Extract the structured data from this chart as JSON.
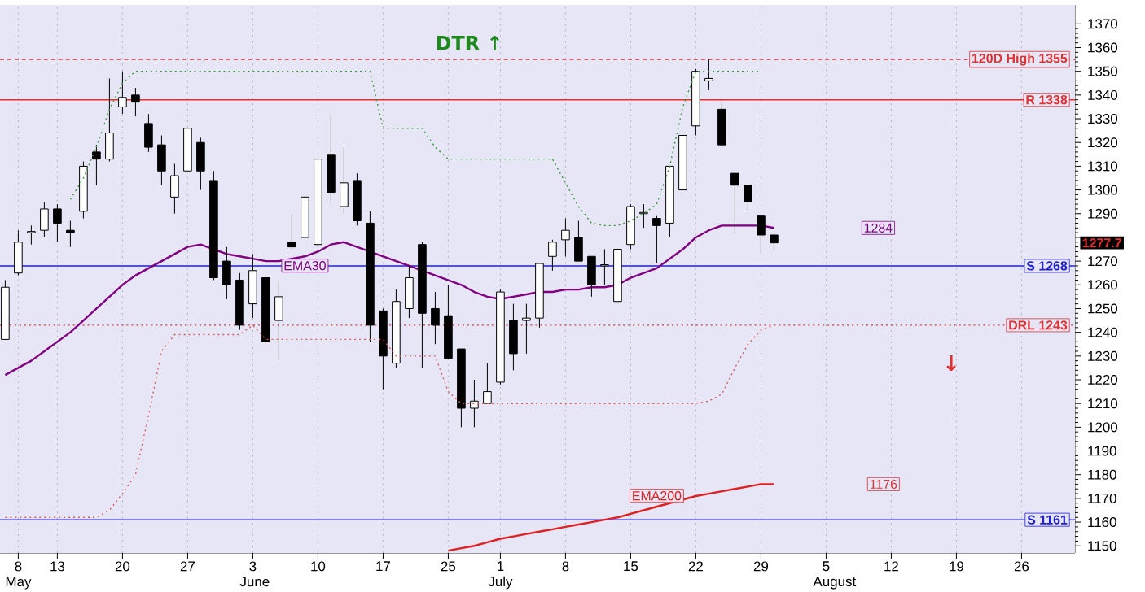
{
  "chart_data": {
    "type": "candlestick",
    "categories": [
      null,
      "8 May",
      null,
      null,
      "13",
      null,
      null,
      null,
      null,
      "20",
      null,
      null,
      null,
      null,
      "27",
      null,
      null,
      null,
      null,
      "3 June",
      null,
      null,
      null,
      null,
      "10",
      null,
      null,
      null,
      null,
      "17",
      null,
      null,
      null,
      null,
      "25",
      null,
      null,
      null,
      "1 July",
      null,
      null,
      null,
      null,
      "8",
      null,
      null,
      null,
      null,
      "15",
      null,
      null,
      null,
      null,
      "22",
      null,
      null,
      null,
      null,
      "29",
      null,
      null,
      null,
      null,
      "5 August",
      null,
      null,
      null,
      null,
      "12",
      null,
      null,
      null,
      null,
      "19",
      null,
      null,
      null,
      null,
      "26",
      null,
      null,
      null,
      null
    ],
    "ohlc": [
      [
        1237,
        1262,
        1237,
        1259
      ],
      [
        1265,
        1283,
        1264,
        1278
      ],
      [
        1282,
        1285,
        1277,
        1282.5
      ],
      [
        1283,
        1295,
        1280,
        1292
      ],
      [
        1292,
        1294,
        1278,
        1286
      ],
      [
        1283,
        1287,
        1276,
        1282
      ],
      [
        1291,
        1312,
        1288,
        1310
      ],
      [
        1316,
        1319,
        1302,
        1313
      ],
      [
        1313,
        1347,
        1312,
        1324
      ],
      [
        1335,
        1350,
        1332,
        1339
      ],
      [
        1340,
        1343,
        1331,
        1337
      ],
      [
        1328,
        1332,
        1316,
        1318
      ],
      [
        1319,
        1323,
        1302,
        1308
      ],
      [
        1297,
        1311,
        1290,
        1306
      ],
      [
        1308,
        1326,
        1308,
        1326
      ],
      [
        1320,
        1322,
        1300,
        1308
      ],
      [
        1304,
        1308,
        1262,
        1263
      ],
      [
        1270,
        1276,
        1254,
        1260
      ],
      [
        1262,
        1265,
        1241,
        1243
      ],
      [
        1252,
        1273,
        1246,
        1266
      ],
      [
        1263,
        1263,
        1236,
        1236
      ],
      [
        1245,
        1262,
        1229,
        1255
      ],
      [
        1278,
        1290,
        1275,
        1276
      ],
      [
        1280,
        1297,
        1280,
        1297
      ],
      [
        1277,
        1313,
        1276,
        1313
      ],
      [
        1315,
        1332,
        1294,
        1299
      ],
      [
        1293,
        1318,
        1290,
        1303
      ],
      [
        1304,
        1307,
        1285,
        1287
      ],
      [
        1286,
        1291,
        1236,
        1243
      ],
      [
        1249,
        1250,
        1216,
        1230
      ],
      [
        1227,
        1258,
        1225,
        1253
      ],
      [
        1250,
        1268,
        1246,
        1263
      ],
      [
        1277,
        1278,
        1225,
        1248
      ],
      [
        1250,
        1257,
        1235,
        1243
      ],
      [
        1247,
        1260,
        1229,
        1229
      ],
      [
        1233,
        1233,
        1200,
        1208
      ],
      [
        1208,
        1220,
        1200,
        1211
      ],
      [
        1210,
        1227,
        1210,
        1215
      ],
      [
        1219,
        1258,
        1218,
        1257
      ],
      [
        1245,
        1252,
        1224,
        1231
      ],
      [
        1245,
        1252,
        1231,
        1246
      ],
      [
        1246,
        1269,
        1242,
        1269
      ],
      [
        1272,
        1279,
        1266,
        1278
      ],
      [
        1279,
        1288,
        1272,
        1283
      ],
      [
        1280,
        1287,
        1270,
        1270
      ],
      [
        1272,
        1272,
        1255,
        1260
      ],
      [
        1268,
        1275,
        1260,
        1268.5
      ],
      [
        1253,
        1275,
        1253,
        1275
      ],
      [
        1277,
        1294,
        1275,
        1293
      ],
      [
        1290,
        1294,
        1284,
        1290.5
      ],
      [
        1288,
        1289,
        1269,
        1285
      ],
      [
        1286,
        1310,
        1280,
        1310
      ],
      [
        1300,
        1323,
        1300,
        1323
      ],
      [
        1327,
        1351,
        1323,
        1350
      ],
      [
        1346,
        1355,
        1342,
        1347
      ],
      [
        1334,
        1337,
        1319,
        1319
      ],
      [
        1307,
        1307,
        1282,
        1302
      ],
      [
        1302,
        1302,
        1291,
        1295
      ],
      [
        1289,
        1289,
        1273,
        1281
      ],
      [
        1281,
        1281.5,
        1275,
        1277.7
      ],
      null,
      null,
      null,
      null,
      null,
      null,
      null,
      null,
      null,
      null,
      null,
      null,
      null,
      null,
      null,
      null,
      null,
      null,
      null,
      null,
      null,
      null,
      null
    ],
    "series": [
      {
        "type": "line",
        "name": "EMA30",
        "color": "#800080",
        "values": [
          1222,
          1225,
          1228,
          1232,
          1236,
          1240,
          1245,
          1250,
          1255,
          1260,
          1264,
          1267,
          1270,
          1273,
          1276,
          1277,
          1275,
          1273,
          1272,
          1271,
          1270,
          1270,
          1271,
          1272,
          1274,
          1277,
          1278,
          1276,
          1274,
          1272,
          1270,
          1268,
          1266,
          1264,
          1262,
          1260,
          1257,
          1255,
          1254,
          1255,
          1256,
          1257,
          1257,
          1258,
          1258,
          1259,
          1259,
          1260,
          1263,
          1265,
          1267,
          1271,
          1275,
          1280,
          1283,
          1285,
          1285,
          1285,
          1285,
          1284,
          null,
          null,
          null,
          null,
          null,
          null,
          null,
          null,
          null,
          null,
          null,
          null,
          null,
          null,
          null,
          null,
          null,
          null,
          null,
          null,
          null,
          null,
          null
        ]
      },
      {
        "type": "line",
        "name": "EMA200",
        "color": "#e02020",
        "values": [
          null,
          null,
          null,
          null,
          null,
          null,
          null,
          null,
          null,
          null,
          null,
          null,
          null,
          null,
          null,
          null,
          null,
          null,
          null,
          null,
          null,
          null,
          null,
          null,
          null,
          null,
          null,
          null,
          null,
          null,
          null,
          null,
          null,
          null,
          1148,
          1149,
          1150,
          1151.5,
          1153,
          1154,
          1155,
          1156,
          1157,
          1158,
          1159,
          1160,
          1161,
          1162,
          1163.5,
          1165,
          1166.5,
          1168,
          1169.5,
          1171,
          1172,
          1173,
          1174,
          1175,
          1176,
          1176,
          null,
          null,
          null,
          null,
          null,
          null,
          null,
          null,
          null,
          null,
          null,
          null,
          null,
          null,
          null,
          null,
          null,
          null,
          null,
          null,
          null,
          null,
          null
        ]
      },
      {
        "type": "line",
        "color": "#339933",
        "line_style": "dotted",
        "values": [
          null,
          null,
          null,
          null,
          null,
          1296,
          1305,
          1318,
          1334,
          1345,
          1350,
          1350,
          1350,
          1350,
          1350,
          1350,
          1350,
          1350,
          1350,
          1350,
          1350,
          1350,
          1350,
          1350,
          1350,
          1350,
          1350,
          1350,
          1350,
          1326,
          1326,
          1326,
          1326,
          1318,
          1313,
          1313,
          1313,
          1313,
          1313,
          1313,
          1313,
          1313,
          1313,
          1303,
          1293,
          1286,
          1285,
          1285,
          1287,
          1290,
          1294,
          1310,
          1335,
          1350,
          1350,
          1350,
          1350,
          1350,
          1350,
          null,
          null,
          null,
          null,
          null,
          null,
          null,
          null,
          null,
          null,
          null,
          null,
          null,
          null,
          null,
          null,
          null,
          null,
          null,
          null,
          null,
          null,
          null,
          null
        ]
      },
      {
        "type": "line",
        "color": "#e05a5a",
        "line_style": "dotted",
        "values": [
          1162,
          1162,
          1162,
          1162,
          1162,
          1162,
          1162,
          1162,
          1165,
          1172,
          1180,
          1205,
          1232,
          1239,
          1239,
          1239,
          1239,
          1239,
          1239,
          1243,
          1237,
          1237,
          1237,
          1237,
          1237,
          1237,
          1237,
          1237,
          1237,
          1237,
          1230,
          1230,
          1230,
          1230,
          1215,
          1210,
          1210,
          1210,
          1210,
          1210,
          1210,
          1210,
          1210,
          1210,
          1210,
          1210,
          1210,
          1210,
          1210,
          1210,
          1210,
          1210,
          1210,
          1210,
          1211,
          1214,
          1225,
          1235,
          1241,
          1243,
          null,
          null,
          null,
          null,
          null,
          null,
          null,
          null,
          null,
          null,
          null,
          null,
          null,
          null,
          null,
          null,
          null,
          null,
          null,
          null,
          null,
          null,
          null
        ]
      }
    ],
    "ylim": [
      1147,
      1378
    ],
    "yticks": [
      1150,
      1160,
      1170,
      1180,
      1190,
      1200,
      1210,
      1220,
      1230,
      1240,
      1250,
      1260,
      1270,
      {
        "value": 1280,
        "label": null
      },
      1290,
      1300,
      1310,
      1320,
      1330,
      1340,
      1350,
      1360,
      1370
    ],
    "grid": "x",
    "ref_lines": [
      {
        "axis": "y",
        "value": 1355,
        "label": "120D High 1355",
        "color": "#e03030",
        "line_style": "dashed"
      },
      {
        "axis": "y",
        "value": 1338,
        "label": "R 1338",
        "color": "#e03030",
        "line_style": "solid"
      },
      {
        "axis": "y",
        "value": 1268,
        "label": "S 1268",
        "color": "#2020d0",
        "line_style": "solid"
      },
      {
        "axis": "y",
        "value": 1243,
        "label": "DRL 1243",
        "color": "#e03030",
        "line_style": "dotted"
      },
      {
        "axis": "y",
        "value": 1161,
        "label": "S 1161",
        "color": "#2020d0",
        "line_style": "solid"
      }
    ],
    "annotations": [
      "DTR ↑",
      {
        "text": "1284",
        "y": 1284
      },
      {
        "text": "1176",
        "y": 1176
      },
      "1277.7",
      "↓"
    ]
  }
}
